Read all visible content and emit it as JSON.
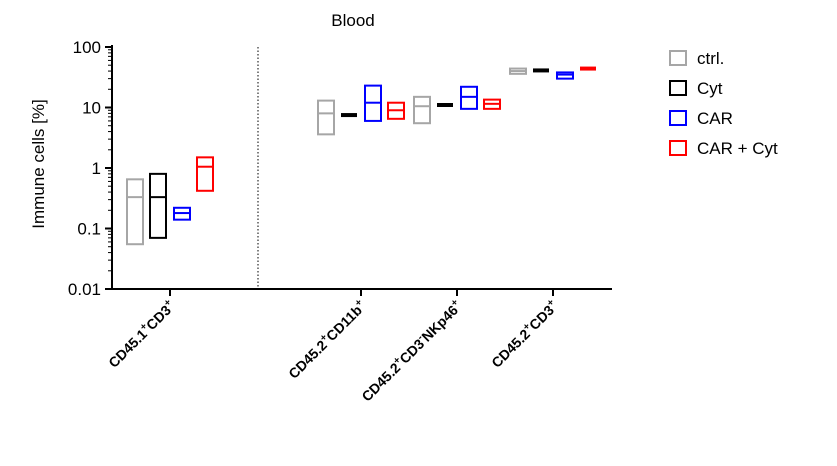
{
  "chart_data": {
    "type": "box",
    "title": "Blood",
    "ylabel": "Immune cells [%]",
    "yscale": "log",
    "ylim": [
      0.01,
      100
    ],
    "yticks": [
      {
        "value": 0.01,
        "label": "0.01"
      },
      {
        "value": 0.1,
        "label": "0.1"
      },
      {
        "value": 1,
        "label": "1"
      },
      {
        "value": 10,
        "label": "10"
      },
      {
        "value": 100,
        "label": "100"
      }
    ],
    "grid": false,
    "legend_position": "right",
    "separator_after_group": 0,
    "categories": [
      {
        "base": "CD45.1",
        "sup1": "+",
        "mid": "CD3",
        "sup2": "+",
        "tail": ""
      },
      {
        "base": "CD45.2",
        "sup1": "+",
        "mid": "CD11b",
        "sup2": "+",
        "tail": ""
      },
      {
        "base": "CD45.2",
        "sup1": "+",
        "mid": "CD3",
        "sup2": "-",
        "tail": "NKp46",
        "sup3": "+"
      },
      {
        "base": "CD45.2",
        "sup1": "+",
        "mid": "CD3",
        "sup2": "+",
        "tail": ""
      }
    ],
    "series": [
      {
        "name": "ctrl.",
        "color": "#a6a6a6",
        "values": [
          {
            "min": 0.055,
            "median": 0.33,
            "max": 0.65
          },
          {
            "min": 3.6,
            "median": 8.0,
            "max": 13.0
          },
          {
            "min": 5.5,
            "median": 10.5,
            "max": 15.0
          },
          {
            "min": 36,
            "median": 40,
            "max": 44
          }
        ]
      },
      {
        "name": "Cyt",
        "color": "#000000",
        "values": [
          {
            "min": 0.07,
            "median": 0.33,
            "max": 0.8
          },
          {
            "min": 7.5,
            "median": 7.5,
            "max": 7.5
          },
          {
            "min": 11.0,
            "median": 11.0,
            "max": 11.0
          },
          {
            "min": 41,
            "median": 41,
            "max": 41
          }
        ]
      },
      {
        "name": "CAR",
        "color": "#0000ff",
        "values": [
          {
            "min": 0.14,
            "median": 0.18,
            "max": 0.22
          },
          {
            "min": 6.0,
            "median": 12.0,
            "max": 23.0
          },
          {
            "min": 9.5,
            "median": 15.0,
            "max": 22.0
          },
          {
            "min": 30,
            "median": 35,
            "max": 38
          }
        ]
      },
      {
        "name": "CAR + Cyt",
        "color": "#ff0000",
        "values": [
          {
            "min": 0.42,
            "median": 1.05,
            "max": 1.5
          },
          {
            "min": 6.5,
            "median": 9.0,
            "max": 12.0
          },
          {
            "min": 9.5,
            "median": 11.5,
            "max": 13.5
          },
          {
            "min": 44,
            "median": 44,
            "max": 44
          }
        ]
      }
    ]
  }
}
